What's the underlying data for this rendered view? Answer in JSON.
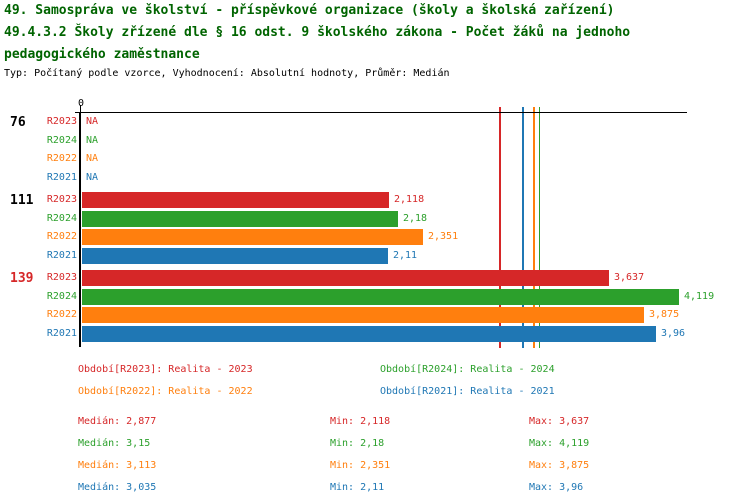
{
  "header": {
    "title_line1": "49. Samospráva ve školství - příspěvkové organizace (školy a školská zařízení)",
    "title_line2": "49.4.3.2 Školy zřízené dle § 16 odst. 9 školského zákona - Počet žáků na jednoho",
    "title_line3": "pedagogického zaměstnance",
    "subtitle": "Typ: Počítaný podle vzorce, Vyhodnocení: Absolutní hodnoty, Průměr: Medián",
    "title_color": "#006400"
  },
  "chart_data": {
    "type": "bar",
    "orientation": "horizontal",
    "title": "49.4.3.2 Školy zřízené dle § 16 odst. 9 školského zákona - Počet žáků na jednoho pedagogického zaměstnance",
    "categories": [
      "76",
      "111",
      "139"
    ],
    "category_label_colors": [
      "#000000",
      "#000000",
      "#d62728"
    ],
    "x_origin_label": "0",
    "xlim": [
      0,
      4.17
    ],
    "grid": false,
    "legend_position": "bottom",
    "series": [
      {
        "name": "R2023",
        "color": "#d62728",
        "values": [
          null,
          2.118,
          3.637
        ],
        "display": [
          "NA",
          "2,118",
          "3,637"
        ],
        "median": 2.877,
        "median_display": "2,877",
        "min": 2.118,
        "min_display": "2,118",
        "max": 3.637,
        "max_display": "3,637"
      },
      {
        "name": "R2024",
        "color": "#2ca02c",
        "values": [
          null,
          2.18,
          4.119
        ],
        "display": [
          "NA",
          "2,18",
          "4,119"
        ],
        "median": 3.15,
        "median_display": "3,15",
        "min": 2.18,
        "min_display": "2,18",
        "max": 4.119,
        "max_display": "4,119"
      },
      {
        "name": "R2022",
        "color": "#ff7f0e",
        "values": [
          null,
          2.351,
          3.875
        ],
        "display": [
          "NA",
          "2,351",
          "3,875"
        ],
        "median": 3.113,
        "median_display": "3,113",
        "min": 2.351,
        "min_display": "2,351",
        "max": 3.875,
        "max_display": "3,875"
      },
      {
        "name": "R2021",
        "color": "#1f77b4",
        "values": [
          null,
          2.11,
          3.96
        ],
        "display": [
          "NA",
          "2,11",
          "3,96"
        ],
        "median": 3.035,
        "median_display": "3,035",
        "min": 2.11,
        "min_display": "2,11",
        "max": 3.96,
        "max_display": "3,96"
      }
    ]
  },
  "legend": {
    "items": [
      {
        "series": "R2023",
        "label": "Období[R2023]: Realita - 2023"
      },
      {
        "series": "R2024",
        "label": "Období[R2024]: Realita - 2024"
      },
      {
        "series": "R2022",
        "label": "Období[R2022]: Realita - 2022"
      },
      {
        "series": "R2021",
        "label": "Období[R2021]: Realita - 2021"
      }
    ]
  },
  "stats": {
    "median_label": "Medián",
    "min_label": "Min",
    "max_label": "Max"
  }
}
